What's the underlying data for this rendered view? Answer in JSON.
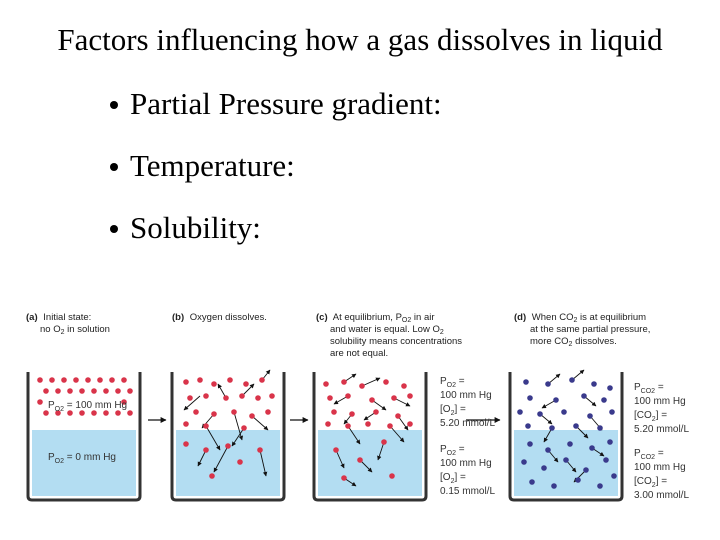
{
  "title": "Factors influencing how a gas dissolves in liquid",
  "bullets": [
    "Partial Pressure gradient:",
    "Temperature:",
    "Solubility:"
  ],
  "colors": {
    "water": "#b3ddf2",
    "oxygen": "#d9344a",
    "co2": "#3a3a8c",
    "container": "#333333"
  },
  "panels": {
    "a": {
      "tag": "(a)",
      "caption": [
        "Initial state:",
        "no O",
        "2",
        " in solution"
      ],
      "gas_label": [
        "P",
        "O2",
        " = 100 mm Hg"
      ],
      "liquid_label": [
        "P",
        "O2",
        " = 0 mm Hg"
      ]
    },
    "b": {
      "tag": "(b)",
      "caption": "Oxygen dissolves."
    },
    "c": {
      "tag": "(c)",
      "caption": [
        "At equilibrium, P",
        "O2",
        " in air",
        "and water is equal. Low O",
        "2",
        "solubility means concentrations",
        "are not equal."
      ],
      "gas_p": [
        "P",
        "O2",
        " ="
      ],
      "gas_p_val": "100 mm Hg",
      "gas_c": [
        "[O",
        "2",
        "] ="
      ],
      "gas_c_val": "5.20 mmol/L",
      "liq_p": [
        "P",
        "O2",
        " ="
      ],
      "liq_p_val": "100 mm Hg",
      "liq_c": [
        "[O",
        "2",
        "] ="
      ],
      "liq_c_val": "0.15 mmol/L"
    },
    "d": {
      "tag": "(d)",
      "caption": [
        "When CO",
        "2",
        " is at equilibrium",
        "at the same partial pressure,",
        "more CO",
        "2",
        " dissolves."
      ],
      "gas_p": [
        "P",
        "CO2",
        " ="
      ],
      "gas_p_val": "100 mm Hg",
      "gas_c": [
        "[CO",
        "2",
        "] ="
      ],
      "gas_c_val": "5.20 mmol/L",
      "liq_p": [
        "P",
        "CO2",
        " ="
      ],
      "liq_p_val": "100 mm Hg",
      "liq_c": [
        "[CO",
        "2",
        "] ="
      ],
      "liq_c_val": "3.00 mmol/L"
    }
  }
}
